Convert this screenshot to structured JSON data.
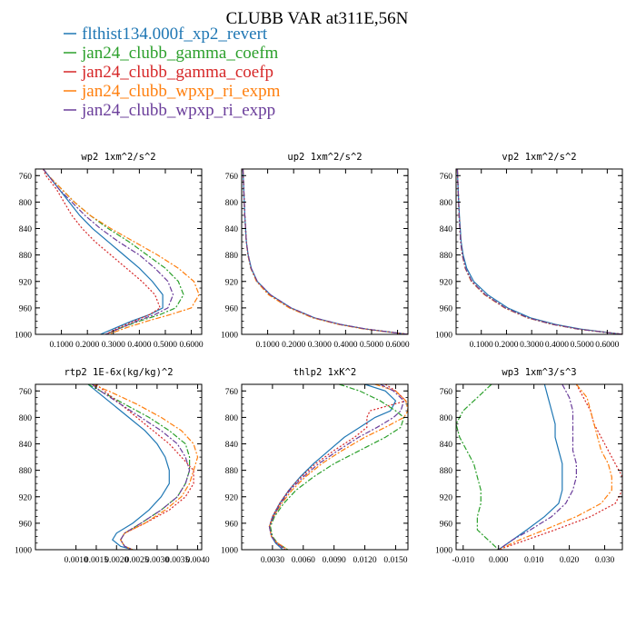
{
  "title": "CLUBB VAR at311E,56N",
  "legend": [
    {
      "label": "flthist134.000f_xp2_revert",
      "color": "#1f77b4",
      "dash": ""
    },
    {
      "label": "jan24_clubb_gamma_coefm",
      "color": "#2ca02c",
      "dash": "6,2,2,2"
    },
    {
      "label": "jan24_clubb_gamma_coefp",
      "color": "#d62728",
      "dash": "2,2"
    },
    {
      "label": "jan24_clubb_wpxp_ri_expm",
      "color": "#ff7f0e",
      "dash": "6,2,2,2"
    },
    {
      "label": "jan24_clubb_wpxp_ri_expp",
      "color": "#6a3d9a",
      "dash": "6,2,2,2"
    }
  ],
  "chart_data": [
    {
      "type": "line",
      "title": "wp2   1xm^2/s^2",
      "xlim": [
        0.0,
        0.64
      ],
      "ylim": [
        750,
        1000
      ],
      "xticks": [
        0.1,
        0.2,
        0.3,
        0.4,
        0.5,
        0.6
      ],
      "xtick_labels": [
        "0.1000",
        "0.2000",
        "0.3000",
        "0.4000",
        "0.5000",
        "0.6000"
      ],
      "yticks": [
        760,
        800,
        840,
        880,
        920,
        960,
        1000
      ],
      "y": [
        750,
        760,
        780,
        800,
        820,
        840,
        860,
        880,
        900,
        920,
        940,
        960,
        970,
        980,
        990,
        1000
      ],
      "series": [
        {
          "values": [
            0.03,
            0.05,
            0.09,
            0.13,
            0.17,
            0.22,
            0.28,
            0.34,
            0.4,
            0.45,
            0.49,
            0.49,
            0.44,
            0.37,
            0.31,
            0.25
          ]
        },
        {
          "values": [
            0.03,
            0.05,
            0.1,
            0.15,
            0.21,
            0.28,
            0.36,
            0.43,
            0.5,
            0.55,
            0.57,
            0.54,
            0.48,
            0.4,
            0.33,
            0.27
          ]
        },
        {
          "values": [
            0.03,
            0.04,
            0.08,
            0.11,
            0.14,
            0.18,
            0.23,
            0.29,
            0.35,
            0.41,
            0.46,
            0.48,
            0.44,
            0.38,
            0.32,
            0.27
          ]
        },
        {
          "values": [
            0.03,
            0.05,
            0.1,
            0.15,
            0.21,
            0.29,
            0.38,
            0.47,
            0.55,
            0.61,
            0.63,
            0.6,
            0.52,
            0.43,
            0.35,
            0.28
          ]
        },
        {
          "values": [
            0.03,
            0.05,
            0.09,
            0.14,
            0.19,
            0.25,
            0.32,
            0.4,
            0.46,
            0.51,
            0.53,
            0.51,
            0.46,
            0.39,
            0.33,
            0.27
          ]
        }
      ]
    },
    {
      "type": "line",
      "title": "up2   1xm^2/s^2",
      "xlim": [
        0.0,
        0.64
      ],
      "ylim": [
        750,
        1000
      ],
      "xticks": [
        0.1,
        0.2,
        0.3,
        0.4,
        0.5,
        0.6
      ],
      "xtick_labels": [
        "0.1000",
        "0.2000",
        "0.3000",
        "0.4000",
        "0.5000",
        "0.6000"
      ],
      "yticks": [
        760,
        800,
        840,
        880,
        920,
        960,
        1000
      ],
      "y": [
        750,
        780,
        820,
        860,
        880,
        900,
        920,
        940,
        960,
        975,
        985,
        992,
        1000
      ],
      "series": [
        {
          "values": [
            0.005,
            0.008,
            0.012,
            0.018,
            0.025,
            0.037,
            0.06,
            0.11,
            0.19,
            0.28,
            0.38,
            0.48,
            0.64
          ]
        },
        {
          "values": [
            0.005,
            0.008,
            0.012,
            0.018,
            0.024,
            0.035,
            0.058,
            0.105,
            0.185,
            0.275,
            0.375,
            0.475,
            0.64
          ]
        },
        {
          "values": [
            0.005,
            0.008,
            0.012,
            0.018,
            0.025,
            0.036,
            0.059,
            0.108,
            0.188,
            0.278,
            0.378,
            0.478,
            0.64
          ]
        },
        {
          "values": [
            0.005,
            0.008,
            0.012,
            0.018,
            0.024,
            0.035,
            0.057,
            0.103,
            0.183,
            0.273,
            0.373,
            0.473,
            0.64
          ]
        },
        {
          "values": [
            0.005,
            0.008,
            0.012,
            0.018,
            0.025,
            0.036,
            0.06,
            0.11,
            0.19,
            0.28,
            0.38,
            0.48,
            0.64
          ]
        }
      ]
    },
    {
      "type": "line",
      "title": "vp2   1xm^2/s^2",
      "xlim": [
        0.0,
        0.66
      ],
      "ylim": [
        750,
        1000
      ],
      "xticks": [
        0.1,
        0.2,
        0.3,
        0.4,
        0.5,
        0.6
      ],
      "xtick_labels": [
        "0.1000",
        "0.2000",
        "0.3000",
        "0.4000",
        "0.5000",
        "0.6000"
      ],
      "yticks": [
        760,
        800,
        840,
        880,
        920,
        960,
        1000
      ],
      "y": [
        750,
        780,
        820,
        860,
        880,
        900,
        920,
        940,
        960,
        975,
        985,
        992,
        1000
      ],
      "series": [
        {
          "values": [
            0.005,
            0.008,
            0.013,
            0.02,
            0.028,
            0.042,
            0.07,
            0.125,
            0.205,
            0.295,
            0.395,
            0.495,
            0.66
          ]
        },
        {
          "values": [
            0.005,
            0.008,
            0.012,
            0.018,
            0.025,
            0.037,
            0.062,
            0.115,
            0.195,
            0.285,
            0.385,
            0.485,
            0.66
          ]
        },
        {
          "values": [
            0.005,
            0.008,
            0.012,
            0.018,
            0.025,
            0.037,
            0.063,
            0.116,
            0.196,
            0.286,
            0.386,
            0.486,
            0.66
          ]
        },
        {
          "values": [
            0.005,
            0.008,
            0.012,
            0.018,
            0.024,
            0.036,
            0.06,
            0.112,
            0.192,
            0.282,
            0.382,
            0.482,
            0.66
          ]
        },
        {
          "values": [
            0.005,
            0.008,
            0.012,
            0.018,
            0.025,
            0.037,
            0.062,
            0.115,
            0.195,
            0.285,
            0.385,
            0.485,
            0.66
          ]
        }
      ]
    },
    {
      "type": "line",
      "title": "rtp2   1E-6x(kg/kg)^2",
      "xlim": [
        0.0,
        0.0041
      ],
      "ylim": [
        750,
        1000
      ],
      "xticks": [
        0.001,
        0.0015,
        0.002,
        0.0025,
        0.003,
        0.0035,
        0.004
      ],
      "xtick_labels": [
        "0.0010",
        "0.0015",
        "0.0020",
        "0.0025",
        "0.0030",
        "0.0035",
        "0.0040"
      ],
      "yticks": [
        760,
        800,
        840,
        880,
        920,
        960,
        1000
      ],
      "y": [
        750,
        760,
        780,
        800,
        820,
        840,
        860,
        880,
        900,
        920,
        940,
        960,
        975,
        985,
        995,
        1000
      ],
      "series": [
        {
          "values": [
            0.0013,
            0.0015,
            0.0019,
            0.0023,
            0.0027,
            0.003,
            0.0032,
            0.0033,
            0.0033,
            0.0031,
            0.0028,
            0.0024,
            0.002,
            0.0019,
            0.0021,
            0.0024
          ]
        },
        {
          "values": [
            0.0013,
            0.0016,
            0.0022,
            0.0028,
            0.0033,
            0.0037,
            0.0038,
            0.0038,
            0.0037,
            0.0035,
            0.0031,
            0.0026,
            0.0022,
            0.0021,
            0.0022,
            0.0024
          ]
        },
        {
          "values": [
            0.0015,
            0.0017,
            0.0021,
            0.0025,
            0.0029,
            0.0033,
            0.0036,
            0.0039,
            0.0039,
            0.0037,
            0.0033,
            0.0027,
            0.0022,
            0.0021,
            0.0022,
            0.0024
          ]
        },
        {
          "values": [
            0.0014,
            0.0018,
            0.0025,
            0.0031,
            0.0036,
            0.0039,
            0.004,
            0.0039,
            0.0038,
            0.0036,
            0.0032,
            0.0027,
            0.0022,
            0.0021,
            0.0022,
            0.0024
          ]
        },
        {
          "values": [
            0.0014,
            0.0016,
            0.0021,
            0.0026,
            0.0031,
            0.0035,
            0.0037,
            0.0038,
            0.0037,
            0.0035,
            0.0031,
            0.0026,
            0.0022,
            0.0021,
            0.0022,
            0.0024
          ]
        }
      ]
    },
    {
      "type": "line",
      "title": "thlp2   1xK^2",
      "xlim": [
        0.0,
        0.0162
      ],
      "ylim": [
        750,
        1000
      ],
      "xticks": [
        0.003,
        0.006,
        0.009,
        0.012,
        0.015
      ],
      "xtick_labels": [
        "0.0030",
        "0.0060",
        "0.0090",
        "0.0120",
        "0.0150"
      ],
      "yticks": [
        760,
        800,
        840,
        880,
        920,
        960,
        1000
      ],
      "y": [
        750,
        760,
        775,
        790,
        800,
        815,
        830,
        850,
        870,
        890,
        910,
        930,
        950,
        965,
        980,
        990,
        1000
      ],
      "series": [
        {
          "values": [
            0.012,
            0.014,
            0.015,
            0.0145,
            0.013,
            0.0115,
            0.01,
            0.0085,
            0.007,
            0.0057,
            0.0046,
            0.0037,
            0.003,
            0.0027,
            0.0029,
            0.0033,
            0.004
          ]
        },
        {
          "values": [
            0.0095,
            0.0115,
            0.0135,
            0.015,
            0.0158,
            0.0155,
            0.014,
            0.0115,
            0.009,
            0.007,
            0.0053,
            0.0041,
            0.0032,
            0.0028,
            0.003,
            0.0035,
            0.0045
          ]
        },
        {
          "values": [
            0.014,
            0.015,
            0.016,
            0.0125,
            0.0122,
            0.0122,
            0.011,
            0.009,
            0.0072,
            0.0058,
            0.0046,
            0.0037,
            0.003,
            0.0027,
            0.0029,
            0.0034,
            0.0042
          ]
        },
        {
          "values": [
            0.013,
            0.015,
            0.016,
            0.0162,
            0.0158,
            0.014,
            0.012,
            0.0098,
            0.0078,
            0.0062,
            0.0049,
            0.0039,
            0.0031,
            0.0027,
            0.0029,
            0.0035,
            0.0045
          ]
        },
        {
          "values": [
            0.0135,
            0.0148,
            0.0158,
            0.0155,
            0.0148,
            0.0132,
            0.0114,
            0.0094,
            0.0075,
            0.006,
            0.0047,
            0.0038,
            0.0031,
            0.0027,
            0.0029,
            0.0034,
            0.0043
          ]
        }
      ]
    },
    {
      "type": "line",
      "title": "wp3   1xm^3/s^3",
      "xlim": [
        -0.012,
        0.035
      ],
      "ylim": [
        750,
        1000
      ],
      "xticks": [
        -0.01,
        0.0,
        0.01,
        0.02,
        0.03
      ],
      "xtick_labels": [
        "-0.010",
        "0.000",
        "0.010",
        "0.020",
        "0.030"
      ],
      "yticks": [
        760,
        800,
        840,
        880,
        920,
        960,
        1000
      ],
      "y": [
        750,
        770,
        790,
        810,
        830,
        850,
        870,
        890,
        910,
        930,
        950,
        970,
        985,
        1000
      ],
      "series": [
        {
          "values": [
            0.013,
            0.014,
            0.015,
            0.016,
            0.016,
            0.017,
            0.018,
            0.018,
            0.018,
            0.017,
            0.013,
            0.008,
            0.004,
            0.0
          ]
        },
        {
          "values": [
            -0.002,
            -0.006,
            -0.01,
            -0.012,
            -0.011,
            -0.009,
            -0.007,
            -0.006,
            -0.005,
            -0.005,
            -0.006,
            -0.006,
            -0.003,
            0.0
          ]
        },
        {
          "values": [
            0.022,
            0.024,
            0.026,
            0.027,
            0.029,
            0.031,
            0.033,
            0.035,
            0.035,
            0.033,
            0.026,
            0.016,
            0.008,
            0.0
          ]
        },
        {
          "values": [
            0.022,
            0.025,
            0.026,
            0.027,
            0.028,
            0.029,
            0.031,
            0.032,
            0.032,
            0.029,
            0.022,
            0.013,
            0.006,
            0.0
          ]
        },
        {
          "values": [
            0.018,
            0.02,
            0.021,
            0.021,
            0.021,
            0.021,
            0.022,
            0.022,
            0.021,
            0.019,
            0.015,
            0.009,
            0.004,
            0.0
          ]
        }
      ]
    }
  ]
}
